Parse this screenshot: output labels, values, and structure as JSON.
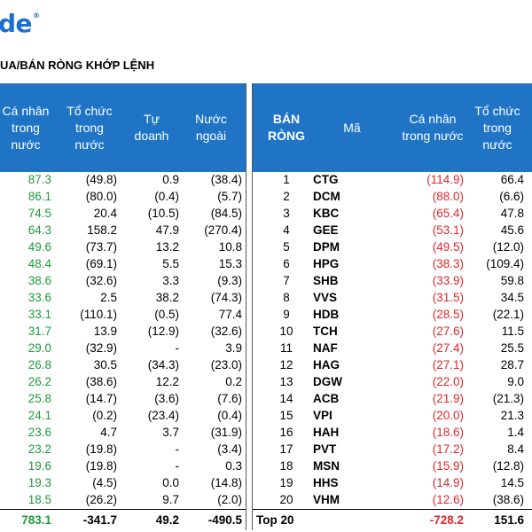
{
  "logo": {
    "text": "de",
    "mark": "®"
  },
  "title": "UA/BÁN RÒNG KHỚP LỆNH",
  "left": {
    "headers": [
      "Cá nhân\ntrong\nnước",
      "Tổ chức\ntrong\nnước",
      "Tự\ndoanh",
      "Nước\nngoài"
    ],
    "rows": [
      [
        "87.3",
        "(49.8)",
        "0.9",
        "(38.4)"
      ],
      [
        "86.1",
        "(80.0)",
        "(0.4)",
        "(5.7)"
      ],
      [
        "74.5",
        "20.4",
        "(10.5)",
        "(84.5)"
      ],
      [
        "64.3",
        "158.2",
        "47.9",
        "(270.4)"
      ],
      [
        "49.6",
        "(73.7)",
        "13.2",
        "10.8"
      ],
      [
        "48.4",
        "(69.1)",
        "5.5",
        "15.3"
      ],
      [
        "38.6",
        "(32.6)",
        "3.3",
        "(9.3)"
      ],
      [
        "33.6",
        "2.5",
        "38.2",
        "(74.3)"
      ],
      [
        "33.1",
        "(110.1)",
        "(0.5)",
        "77.4"
      ],
      [
        "31.7",
        "13.9",
        "(12.9)",
        "(32.6)"
      ],
      [
        "29.0",
        "(32.9)",
        "-",
        "3.9"
      ],
      [
        "26.8",
        "30.5",
        "(34.3)",
        "(23.0)"
      ],
      [
        "26.2",
        "(38.6)",
        "12.2",
        "0.2"
      ],
      [
        "25.8",
        "(14.7)",
        "(3.6)",
        "(7.6)"
      ],
      [
        "24.1",
        "(0.2)",
        "(23.4)",
        "(0.4)"
      ],
      [
        "23.6",
        "4.7",
        "3.7",
        "(31.9)"
      ],
      [
        "23.2",
        "(19.8)",
        "-",
        "(3.4)"
      ],
      [
        "19.6",
        "(19.8)",
        "-",
        "0.3"
      ],
      [
        "19.3",
        "(4.5)",
        "0.0",
        "(14.8)"
      ],
      [
        "18.5",
        "(26.2)",
        "9.7",
        "(2.0)"
      ]
    ],
    "total": [
      "783.1",
      "-341.7",
      "49.2",
      "-490.5"
    ]
  },
  "right": {
    "headers": [
      "BÁN\nRÒNG",
      "Mã",
      "Cá nhân\ntrong nước",
      "Tổ chức\ntrong\nnước"
    ],
    "rows": [
      [
        "1",
        "CTG",
        "(114.9)",
        "66.4"
      ],
      [
        "2",
        "DCM",
        "(88.0)",
        "(6.6)"
      ],
      [
        "3",
        "KBC",
        "(65.4)",
        "47.8"
      ],
      [
        "4",
        "GEE",
        "(53.1)",
        "45.6"
      ],
      [
        "5",
        "DPM",
        "(49.5)",
        "(12.0)"
      ],
      [
        "6",
        "HPG",
        "(38.3)",
        "(109.4)"
      ],
      [
        "7",
        "SHB",
        "(33.9)",
        "59.8"
      ],
      [
        "8",
        "VVS",
        "(31.5)",
        "34.5"
      ],
      [
        "9",
        "HDB",
        "(28.5)",
        "(22.1)"
      ],
      [
        "10",
        "TCH",
        "(27.6)",
        "11.5"
      ],
      [
        "11",
        "NAF",
        "(27.4)",
        "25.5"
      ],
      [
        "12",
        "HAG",
        "(27.1)",
        "28.7"
      ],
      [
        "13",
        "DGW",
        "(22.0)",
        "9.0"
      ],
      [
        "14",
        "ACB",
        "(21.9)",
        "(21.3)"
      ],
      [
        "15",
        "VPI",
        "(20.0)",
        "21.3"
      ],
      [
        "16",
        "HAH",
        "(18.6)",
        "1.4"
      ],
      [
        "17",
        "PVT",
        "(17.2)",
        "8.4"
      ],
      [
        "18",
        "MSN",
        "(15.9)",
        "(12.8)"
      ],
      [
        "19",
        "HHS",
        "(14.9)",
        "14.5"
      ],
      [
        "20",
        "VHM",
        "(12.6)",
        "(38.6)"
      ]
    ],
    "total": [
      "Top 20",
      "-728.2",
      "151.6"
    ]
  },
  "colors": {
    "header_bg": "#1f74c6",
    "buy": "#1e9a3a",
    "sell": "#e0262c",
    "brand": "#1a6fd1"
  }
}
